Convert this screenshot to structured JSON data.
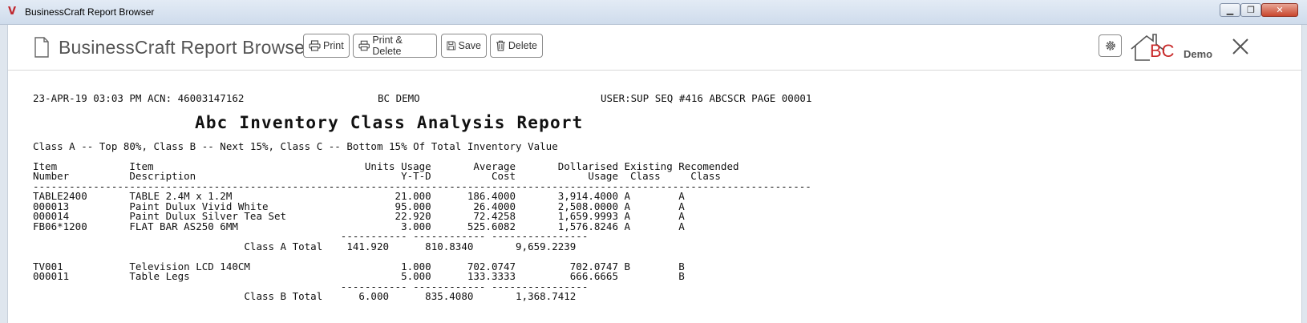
{
  "window": {
    "title": "BusinessCraft Report Browser",
    "min_label": "▁",
    "max_label": "❐",
    "close_label": "✕"
  },
  "toolbar": {
    "title": "BusinessCraft Report Browser",
    "buttons": {
      "print": "Print",
      "print_delete": "Print & Delete",
      "save": "Save",
      "delete": "Delete"
    },
    "logo_text": "BC",
    "demo_label": "Demo"
  },
  "report": {
    "header_left": "23-APR-19 03:03 PM ACN: 46003147162",
    "header_mid": "BC DEMO",
    "header_right": "USER:SUP SEQ #416 ABCSCR PAGE 00001",
    "title": "Abc Inventory Class Analysis Report",
    "subtitle": "Class A -- Top 80%, Class B -- Next 15%, Class C -- Bottom 15% Of Total Inventory Value",
    "col_headers_1": "Item            Item                                   Units Usage       Average       Dollarised Existing Recomended",
    "col_headers_2": "Number          Description                                  Y-T-D          Cost            Usage  Class     Class",
    "separator": "---------------------------------------------------------------------------------------------------------------------------------",
    "rows_a": [
      "TABLE2400       TABLE 2.4M x 1.2M                           21.000      186.4000       3,914.4000 A        A",
      "000013          Paint Dulux Vivid White                     95.000       26.4000       2,508.0000 A        A",
      "000014          Paint Dulux Silver Tea Set                  22.920       72.4258       1,659.9993 A        A",
      "FB06*1200       FLAT BAR AS250 6MM                           3.000      525.6082       1,576.8246 A        A"
    ],
    "subtotal_rule": "                                                   ----------- ------------ ----------------",
    "total_a": "                                   Class A Total    141.920      810.8340       9,659.2239",
    "rows_b": [
      "TV001           Television LCD 140CM                         1.000      702.0747         702.0747 B        B",
      "000011          Table Legs                                   5.000      133.3333         666.6665          B"
    ],
    "total_b": "                                   Class B Total      6.000      835.4080       1,368.7412"
  }
}
